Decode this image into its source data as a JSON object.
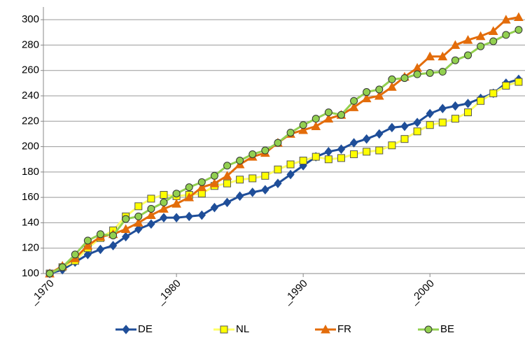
{
  "chart_data": {
    "type": "line",
    "x": [
      1970,
      1971,
      1972,
      1973,
      1974,
      1975,
      1976,
      1977,
      1978,
      1979,
      1980,
      1981,
      1982,
      1983,
      1984,
      1985,
      1986,
      1987,
      1988,
      1989,
      1990,
      1991,
      1992,
      1993,
      1994,
      1995,
      1996,
      1997,
      1998,
      1999,
      2000,
      2001,
      2002,
      2003,
      2004,
      2005,
      2006,
      2007
    ],
    "xlim": [
      1969.5,
      2007.5
    ],
    "xticks": [
      {
        "value": 1970,
        "label": "_1970"
      },
      {
        "value": 1980,
        "label": "_1980"
      },
      {
        "value": 1990,
        "label": "_1990"
      },
      {
        "value": 2000,
        "label": "_2000"
      }
    ],
    "ylim": [
      100,
      310
    ],
    "yticks": [
      100,
      120,
      140,
      160,
      180,
      200,
      220,
      240,
      260,
      280,
      300
    ],
    "grid": true,
    "legend": "bottom",
    "series": [
      {
        "name": "DE",
        "color": "#1f4e99",
        "marker": "diamond",
        "values": [
          100,
          103,
          109,
          115,
          119,
          122,
          129,
          135,
          139,
          144,
          144,
          145,
          146,
          152,
          156,
          161,
          164,
          166,
          171,
          178,
          185,
          192,
          196,
          198,
          203,
          206,
          210,
          215,
          216,
          219,
          226,
          230,
          232,
          234,
          238,
          242,
          250,
          253
        ]
      },
      {
        "name": "NL",
        "color": "#ffff00",
        "marker": "square",
        "values": [
          100,
          105,
          110,
          120,
          128,
          134,
          145,
          153,
          159,
          162,
          161,
          162,
          163,
          169,
          171,
          174,
          175,
          177,
          182,
          186,
          189,
          192,
          190,
          191,
          194,
          196,
          197,
          201,
          206,
          212,
          217,
          219,
          222,
          227,
          236,
          242,
          248,
          251
        ]
      },
      {
        "name": "FR",
        "color": "#e36c0a",
        "marker": "triangle",
        "values": [
          100,
          106,
          112,
          122,
          129,
          131,
          135,
          140,
          146,
          151,
          155,
          160,
          168,
          171,
          177,
          186,
          192,
          195,
          203,
          210,
          213,
          216,
          222,
          225,
          231,
          238,
          240,
          247,
          255,
          262,
          271,
          271,
          280,
          284,
          287,
          291,
          300,
          302
        ]
      },
      {
        "name": "BE",
        "color": "#92d050",
        "marker": "circle",
        "values": [
          100,
          105,
          115,
          126,
          131,
          130,
          143,
          145,
          151,
          156,
          163,
          168,
          172,
          177,
          185,
          189,
          194,
          197,
          203,
          211,
          217,
          222,
          227,
          225,
          236,
          243,
          245,
          253,
          254,
          257,
          258,
          259,
          268,
          272,
          279,
          283,
          288,
          292
        ]
      }
    ]
  }
}
